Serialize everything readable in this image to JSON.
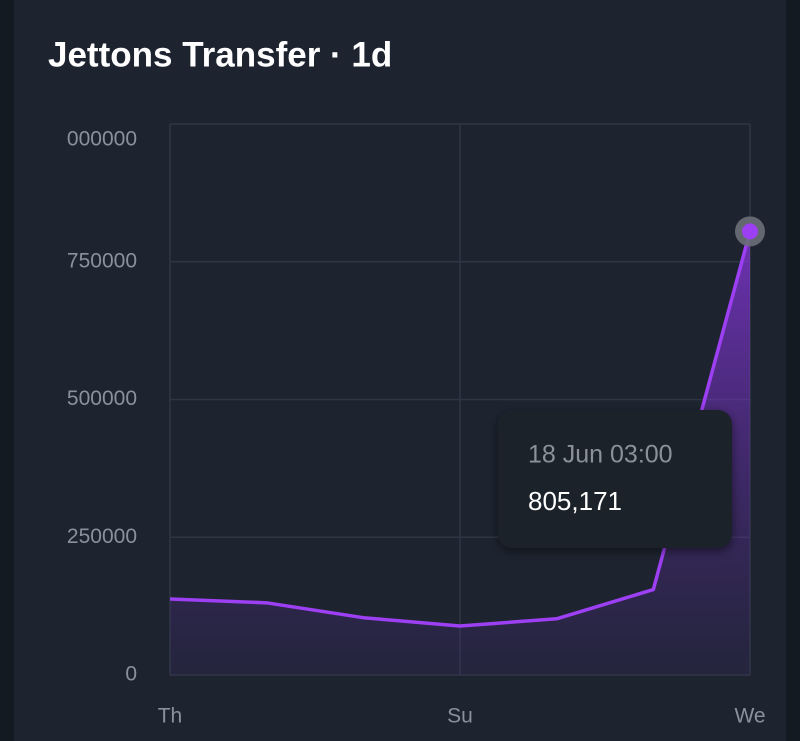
{
  "chart_data": {
    "type": "line",
    "title": "Jettons Transfer · 1d",
    "categories": [
      "Th",
      null,
      null,
      "Su",
      null,
      null,
      "We"
    ],
    "series": [
      {
        "name": "Jettons Transfer",
        "color": "#9d3ff2",
        "values": [
          138000,
          131000,
          104000,
          89000,
          102000,
          155000,
          805171
        ]
      }
    ],
    "ylim": [
      0,
      1000000
    ],
    "yticks": [
      0,
      250000,
      500000,
      750000,
      {
        "value": 1000000,
        "label": "000000"
      }
    ],
    "grid": true,
    "tooltip": {
      "title": "18 Jun 03:00",
      "value_label": "805,171"
    }
  }
}
